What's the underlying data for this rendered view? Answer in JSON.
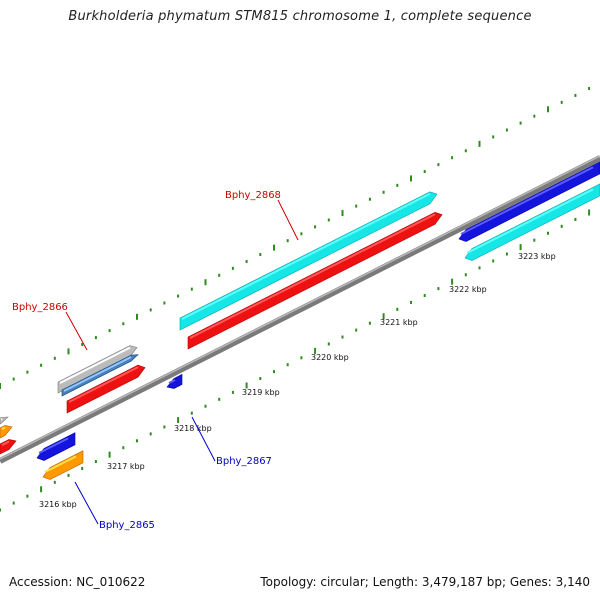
{
  "title": "Burkholderia phymatum STM815 chromosome 1, complete sequence",
  "footer": {
    "accession": "Accession: NC_010622",
    "summary": "Topology: circular; Length: 3,479,187 bp; Genes: 3,140"
  },
  "colors": {
    "backbone": "#888888",
    "tick": "#2e8b1e",
    "label_forward": "#cc0000",
    "label_reverse": "#0000cc",
    "cyan": "#17e6e6",
    "red": "#ee1111",
    "blue": "#1414dd",
    "orange": "#ff9900",
    "gray": "#bbbbbb"
  },
  "ticks": [
    {
      "label": "3216 kbp"
    },
    {
      "label": "3217 kbp"
    },
    {
      "label": "3218 kbp"
    },
    {
      "label": "3219 kbp"
    },
    {
      "label": "3220 kbp"
    },
    {
      "label": "3221 kbp"
    },
    {
      "label": "3222 kbp"
    },
    {
      "label": "3223 kbp"
    }
  ],
  "gene_labels": [
    {
      "name": "Bphy_2868",
      "strand": "forward"
    },
    {
      "name": "Bphy_2866",
      "strand": "forward"
    },
    {
      "name": "Bphy_2867",
      "strand": "reverse"
    },
    {
      "name": "Bphy_2865",
      "strand": "reverse"
    }
  ]
}
